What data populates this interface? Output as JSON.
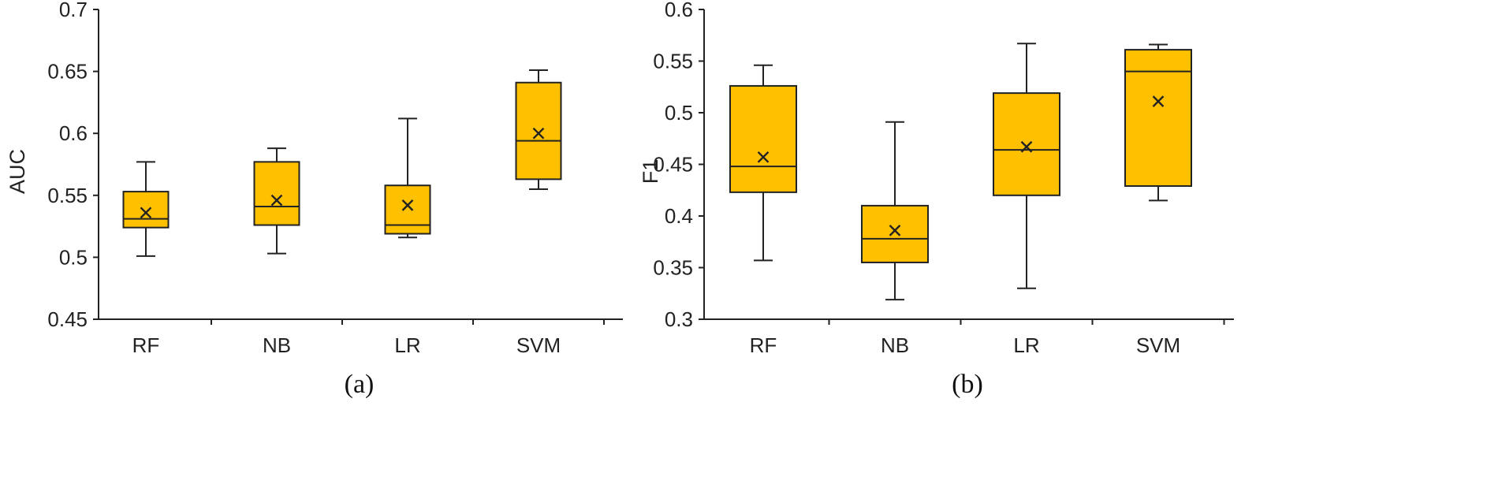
{
  "chart_data": [
    {
      "type": "box",
      "caption": "(a)",
      "ylabel": "AUC",
      "xlabel": "",
      "ylim": [
        0.45,
        0.7
      ],
      "yticks": [
        "0.45",
        "0.5",
        "0.55",
        "0.6",
        "0.65",
        "0.7"
      ],
      "categories": [
        "RF",
        "NB",
        "LR",
        "SVM"
      ],
      "box_color": "#FFC000",
      "boxes": [
        {
          "category": "RF",
          "whisker_low": 0.501,
          "q1": 0.524,
          "median": 0.531,
          "q3": 0.553,
          "whisker_high": 0.577,
          "mean": 0.536
        },
        {
          "category": "NB",
          "whisker_low": 0.503,
          "q1": 0.526,
          "median": 0.541,
          "q3": 0.577,
          "whisker_high": 0.588,
          "mean": 0.546
        },
        {
          "category": "LR",
          "whisker_low": 0.516,
          "q1": 0.519,
          "median": 0.526,
          "q3": 0.558,
          "whisker_high": 0.612,
          "mean": 0.542
        },
        {
          "category": "SVM",
          "whisker_low": 0.555,
          "q1": 0.563,
          "median": 0.594,
          "q3": 0.641,
          "whisker_high": 0.651,
          "mean": 0.6
        }
      ]
    },
    {
      "type": "box",
      "caption": "(b)",
      "ylabel": "F1",
      "xlabel": "",
      "ylim": [
        0.3,
        0.6
      ],
      "yticks": [
        "0.3",
        "0.35",
        "0.4",
        "0.45",
        "0.5",
        "0.55",
        "0.6"
      ],
      "categories": [
        "RF",
        "NB",
        "LR",
        "SVM"
      ],
      "box_color": "#FFC000",
      "boxes": [
        {
          "category": "RF",
          "whisker_low": 0.357,
          "q1": 0.423,
          "median": 0.448,
          "q3": 0.526,
          "whisker_high": 0.546,
          "mean": 0.457
        },
        {
          "category": "NB",
          "whisker_low": 0.319,
          "q1": 0.355,
          "median": 0.378,
          "q3": 0.41,
          "whisker_high": 0.491,
          "mean": 0.386
        },
        {
          "category": "LR",
          "whisker_low": 0.33,
          "q1": 0.42,
          "median": 0.464,
          "q3": 0.519,
          "whisker_high": 0.567,
          "mean": 0.467
        },
        {
          "category": "SVM",
          "whisker_low": 0.415,
          "q1": 0.429,
          "median": 0.54,
          "q3": 0.561,
          "whisker_high": 0.566,
          "mean": 0.511
        }
      ]
    }
  ]
}
